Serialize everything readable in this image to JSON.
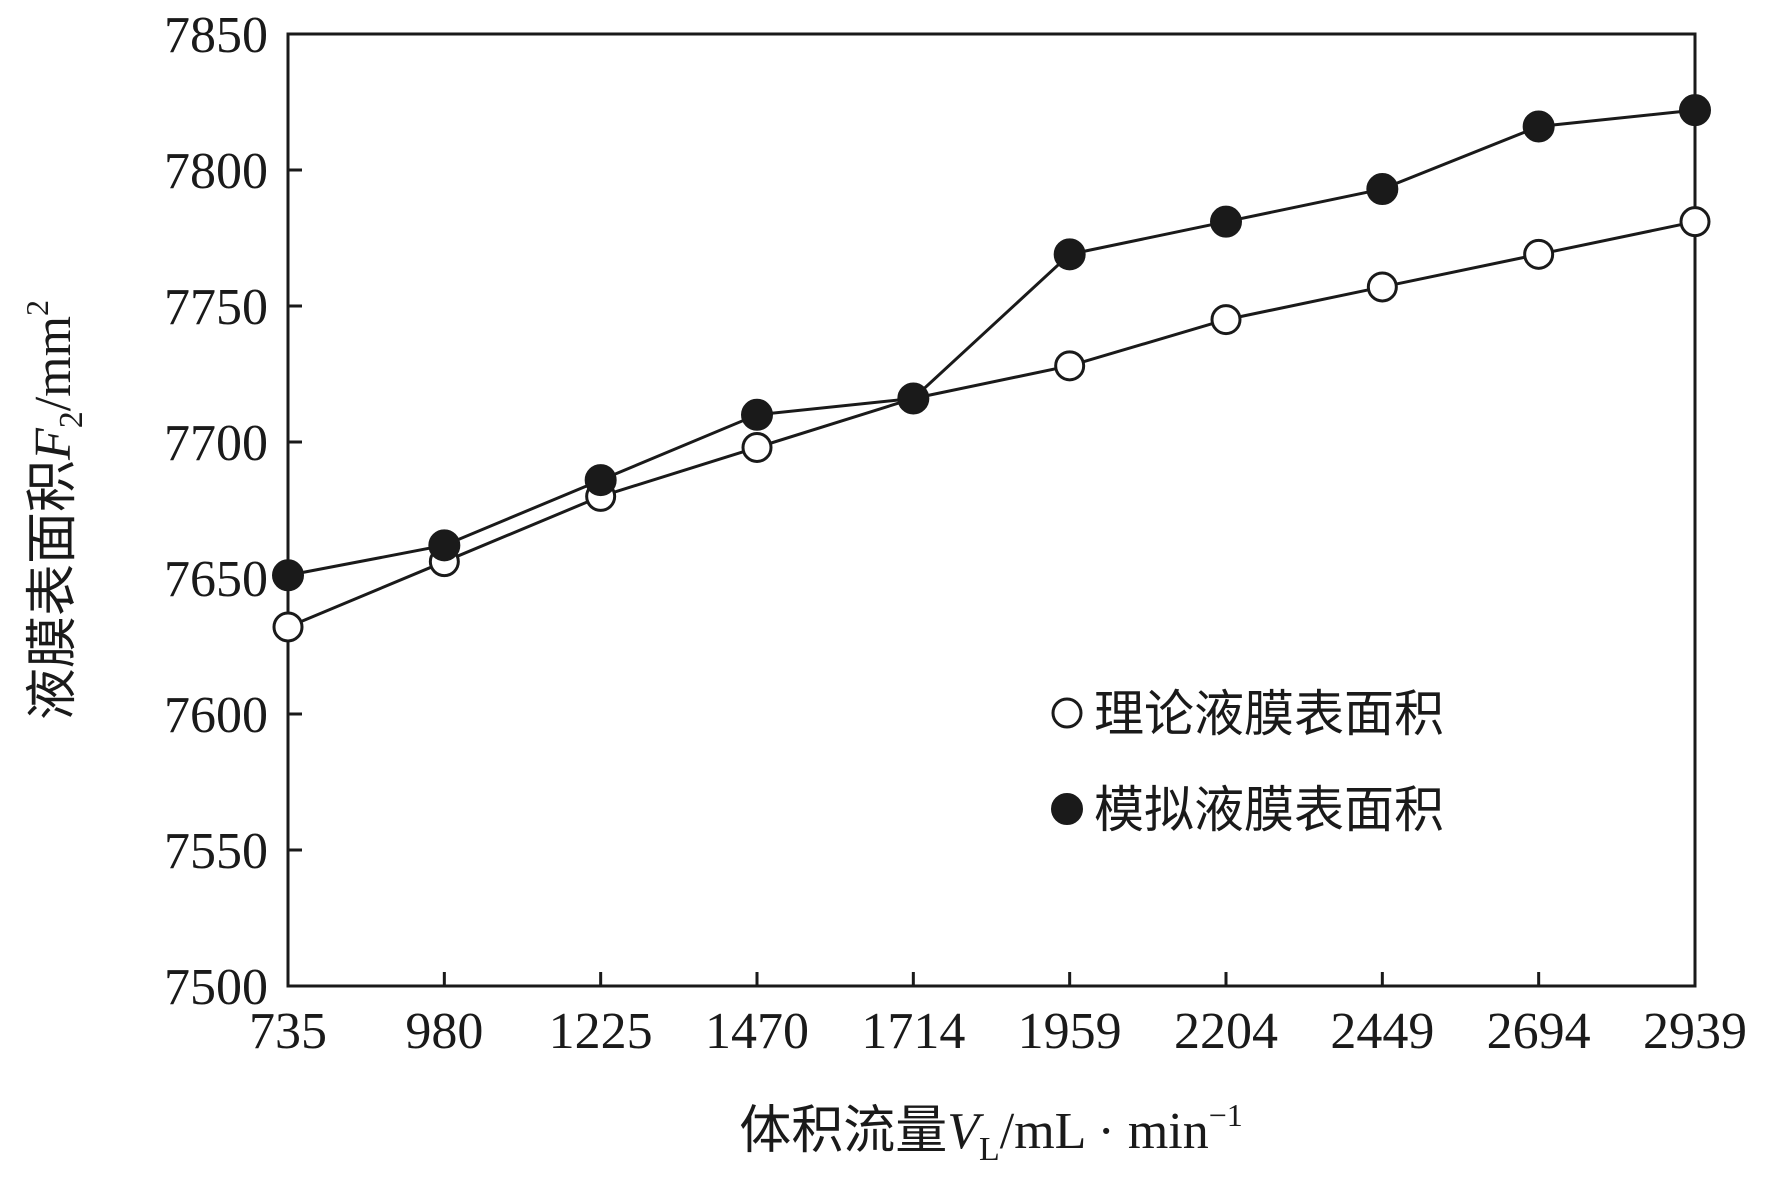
{
  "chart_data": {
    "type": "line",
    "x_categories": [
      "735",
      "980",
      "1225",
      "1470",
      "1714",
      "1959",
      "2204",
      "2449",
      "2694",
      "2939"
    ],
    "x": [
      735,
      980,
      1225,
      1470,
      1714,
      1959,
      2204,
      2449,
      2694,
      2939
    ],
    "ylim": [
      7500,
      7850
    ],
    "y_ticks": [
      7500,
      7550,
      7600,
      7650,
      7700,
      7750,
      7800,
      7850
    ],
    "grid": false,
    "xlabel": {
      "prefix": "体积流量",
      "var": "V",
      "sub": "L",
      "unit": "/mL · min",
      "sup": "−1"
    },
    "ylabel": {
      "prefix": "液膜表面积",
      "var": "F",
      "sub": "2",
      "unit": "/mm",
      "sup": "2"
    },
    "legend_position": "lower-right",
    "series": [
      {
        "name": "理论液膜表面积",
        "marker": "open-circle",
        "values": [
          7632,
          7656,
          7680,
          7698,
          7716,
          7728,
          7745,
          7757,
          7769,
          7781
        ]
      },
      {
        "name": "模拟液膜表面积",
        "marker": "filled-circle",
        "values": [
          7651,
          7662,
          7686,
          7710,
          7716,
          7769,
          7781,
          7793,
          7816,
          7822
        ]
      }
    ]
  }
}
